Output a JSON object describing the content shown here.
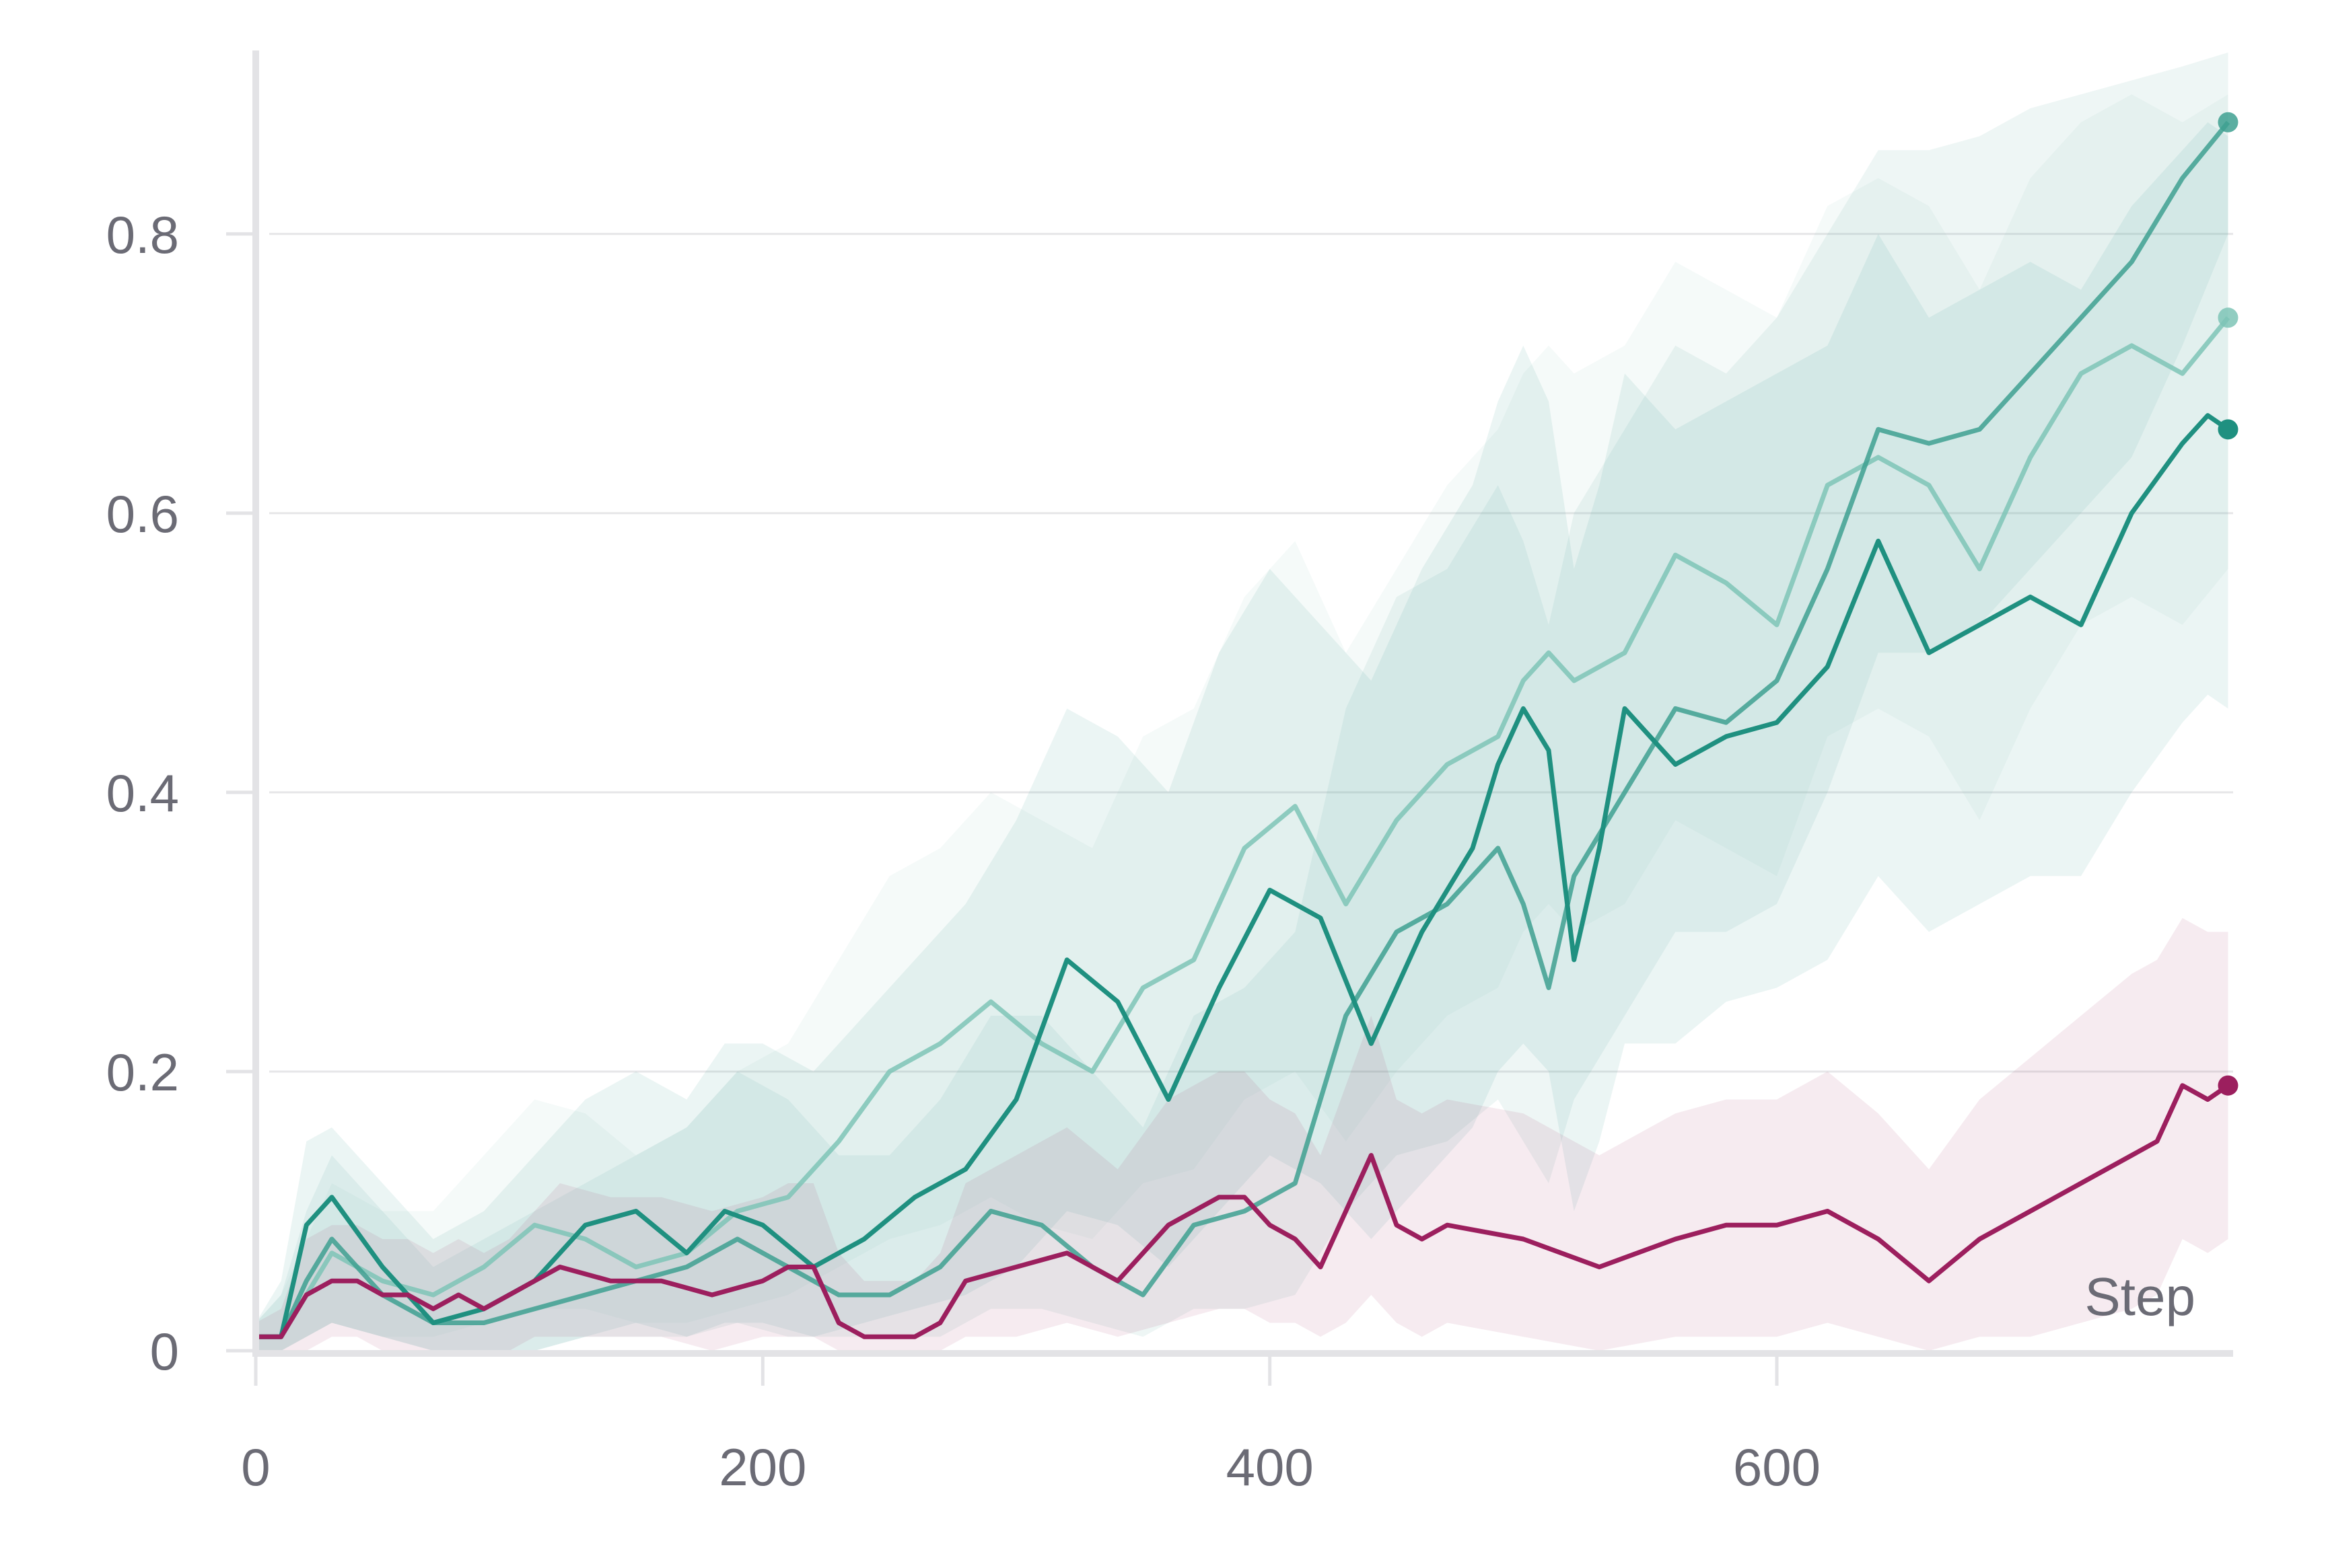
{
  "chart_data": {
    "type": "line",
    "title": "",
    "xlabel": "Step",
    "ylabel": "",
    "xlim": [
      0,
      780
    ],
    "ylim": [
      0,
      0.93
    ],
    "x_ticks": [
      {
        "value": 0,
        "label": "0"
      },
      {
        "value": 200,
        "label": "200"
      },
      {
        "value": 400,
        "label": "400"
      },
      {
        "value": 600,
        "label": "600"
      }
    ],
    "y_ticks": [
      {
        "value": 0,
        "label": "0"
      },
      {
        "value": 0.2,
        "label": "0.2"
      },
      {
        "value": 0.4,
        "label": "0.4"
      },
      {
        "value": 0.6,
        "label": "0.6"
      },
      {
        "value": 0.8,
        "label": "0.8"
      }
    ],
    "grid": "horizontal",
    "legend": "none",
    "colors": {
      "teal_dark": "#1f9080",
      "teal_mid": "#3ea090",
      "teal_light": "#7ec4b6",
      "magenta": "#9c1f5e",
      "grid": "#e6e6e8",
      "axis": "#e3e3e6",
      "text": "#6b6b75"
    },
    "series": [
      {
        "color": "#1f9080",
        "opacity": 1.0,
        "band_opacity": 0.09,
        "x": [
          0,
          10,
          20,
          30,
          50,
          70,
          90,
          110,
          130,
          150,
          170,
          185,
          200,
          220,
          240,
          260,
          280,
          300,
          320,
          340,
          360,
          380,
          400,
          420,
          440,
          460,
          480,
          490,
          500,
          510,
          520,
          530,
          540,
          560,
          580,
          600,
          620,
          640,
          660,
          680,
          700,
          720,
          740,
          760,
          770,
          778
        ],
        "y": [
          0.01,
          0.01,
          0.09,
          0.11,
          0.06,
          0.02,
          0.03,
          0.05,
          0.09,
          0.1,
          0.07,
          0.1,
          0.09,
          0.06,
          0.08,
          0.11,
          0.13,
          0.18,
          0.28,
          0.25,
          0.18,
          0.26,
          0.33,
          0.31,
          0.22,
          0.3,
          0.36,
          0.42,
          0.46,
          0.43,
          0.28,
          0.36,
          0.46,
          0.42,
          0.44,
          0.45,
          0.49,
          0.58,
          0.5,
          0.52,
          0.54,
          0.52,
          0.6,
          0.65,
          0.67,
          0.66
        ],
        "y_low": [
          0.0,
          0.0,
          0.01,
          0.02,
          0.01,
          0.0,
          0.0,
          0.0,
          0.01,
          0.02,
          0.01,
          0.02,
          0.02,
          0.01,
          0.02,
          0.03,
          0.04,
          0.06,
          0.1,
          0.09,
          0.06,
          0.1,
          0.14,
          0.12,
          0.08,
          0.12,
          0.16,
          0.2,
          0.22,
          0.2,
          0.1,
          0.15,
          0.22,
          0.22,
          0.25,
          0.26,
          0.28,
          0.34,
          0.3,
          0.32,
          0.34,
          0.34,
          0.4,
          0.45,
          0.47,
          0.46
        ],
        "y_high": [
          0.02,
          0.05,
          0.15,
          0.16,
          0.12,
          0.08,
          0.1,
          0.14,
          0.18,
          0.2,
          0.18,
          0.22,
          0.22,
          0.2,
          0.24,
          0.28,
          0.32,
          0.38,
          0.46,
          0.44,
          0.4,
          0.5,
          0.56,
          0.52,
          0.48,
          0.56,
          0.62,
          0.68,
          0.72,
          0.68,
          0.56,
          0.62,
          0.7,
          0.66,
          0.68,
          0.7,
          0.72,
          0.8,
          0.74,
          0.76,
          0.78,
          0.76,
          0.82,
          0.86,
          0.88,
          0.87
        ]
      },
      {
        "color": "#3ea090",
        "opacity": 0.85,
        "band_opacity": 0.09,
        "x": [
          0,
          10,
          20,
          30,
          50,
          70,
          90,
          110,
          130,
          150,
          170,
          190,
          210,
          230,
          250,
          270,
          290,
          310,
          330,
          350,
          370,
          390,
          410,
          430,
          450,
          470,
          490,
          500,
          510,
          520,
          540,
          560,
          580,
          600,
          620,
          640,
          660,
          680,
          700,
          720,
          740,
          760,
          778
        ],
        "y": [
          0.01,
          0.01,
          0.05,
          0.08,
          0.04,
          0.02,
          0.02,
          0.03,
          0.04,
          0.05,
          0.06,
          0.08,
          0.06,
          0.04,
          0.04,
          0.06,
          0.1,
          0.09,
          0.06,
          0.04,
          0.09,
          0.1,
          0.12,
          0.24,
          0.3,
          0.32,
          0.36,
          0.32,
          0.26,
          0.34,
          0.4,
          0.46,
          0.45,
          0.48,
          0.56,
          0.66,
          0.65,
          0.66,
          0.7,
          0.74,
          0.78,
          0.84,
          0.88
        ],
        "y_low": [
          0.0,
          0.0,
          0.01,
          0.02,
          0.01,
          0.0,
          0.0,
          0.0,
          0.01,
          0.01,
          0.01,
          0.02,
          0.01,
          0.01,
          0.01,
          0.01,
          0.03,
          0.03,
          0.02,
          0.01,
          0.03,
          0.03,
          0.04,
          0.1,
          0.14,
          0.15,
          0.18,
          0.15,
          0.12,
          0.18,
          0.24,
          0.3,
          0.3,
          0.32,
          0.4,
          0.5,
          0.5,
          0.52,
          0.56,
          0.6,
          0.64,
          0.72,
          0.8
        ],
        "y_high": [
          0.02,
          0.04,
          0.1,
          0.14,
          0.1,
          0.06,
          0.08,
          0.1,
          0.12,
          0.14,
          0.16,
          0.2,
          0.18,
          0.14,
          0.14,
          0.18,
          0.24,
          0.24,
          0.2,
          0.16,
          0.24,
          0.26,
          0.3,
          0.46,
          0.54,
          0.56,
          0.62,
          0.58,
          0.52,
          0.6,
          0.66,
          0.72,
          0.7,
          0.74,
          0.8,
          0.86,
          0.86,
          0.87,
          0.89,
          0.9,
          0.91,
          0.92,
          0.93
        ]
      },
      {
        "color": "#7ec4b6",
        "opacity": 0.85,
        "band_opacity": 0.08,
        "x": [
          0,
          10,
          20,
          30,
          50,
          70,
          90,
          110,
          130,
          150,
          170,
          190,
          210,
          230,
          250,
          270,
          290,
          310,
          330,
          350,
          370,
          390,
          410,
          430,
          450,
          470,
          490,
          500,
          510,
          520,
          540,
          560,
          580,
          600,
          620,
          640,
          660,
          680,
          700,
          720,
          740,
          760,
          778
        ],
        "y": [
          0.01,
          0.01,
          0.04,
          0.07,
          0.05,
          0.04,
          0.06,
          0.09,
          0.08,
          0.06,
          0.07,
          0.1,
          0.11,
          0.15,
          0.2,
          0.22,
          0.25,
          0.22,
          0.2,
          0.26,
          0.28,
          0.36,
          0.39,
          0.32,
          0.38,
          0.42,
          0.44,
          0.48,
          0.5,
          0.48,
          0.5,
          0.57,
          0.55,
          0.52,
          0.62,
          0.64,
          0.62,
          0.56,
          0.64,
          0.7,
          0.72,
          0.7,
          0.74
        ],
        "y_low": [
          0.0,
          0.0,
          0.01,
          0.02,
          0.01,
          0.01,
          0.02,
          0.03,
          0.03,
          0.02,
          0.02,
          0.03,
          0.04,
          0.06,
          0.08,
          0.09,
          0.11,
          0.09,
          0.08,
          0.12,
          0.13,
          0.18,
          0.2,
          0.15,
          0.2,
          0.24,
          0.26,
          0.3,
          0.32,
          0.3,
          0.32,
          0.38,
          0.36,
          0.34,
          0.44,
          0.46,
          0.44,
          0.38,
          0.46,
          0.52,
          0.54,
          0.52,
          0.56
        ],
        "y_high": [
          0.02,
          0.04,
          0.08,
          0.12,
          0.1,
          0.1,
          0.14,
          0.18,
          0.17,
          0.14,
          0.16,
          0.2,
          0.22,
          0.28,
          0.34,
          0.36,
          0.4,
          0.38,
          0.36,
          0.44,
          0.46,
          0.54,
          0.58,
          0.5,
          0.56,
          0.62,
          0.66,
          0.7,
          0.72,
          0.7,
          0.72,
          0.78,
          0.76,
          0.74,
          0.82,
          0.84,
          0.82,
          0.76,
          0.84,
          0.88,
          0.9,
          0.88,
          0.9
        ]
      },
      {
        "color": "#9c1f5e",
        "opacity": 1.0,
        "band_opacity": 0.09,
        "x": [
          0,
          10,
          20,
          30,
          40,
          50,
          60,
          70,
          80,
          90,
          100,
          110,
          120,
          140,
          160,
          180,
          200,
          210,
          220,
          230,
          240,
          250,
          260,
          270,
          280,
          300,
          320,
          340,
          360,
          380,
          390,
          400,
          410,
          420,
          430,
          440,
          450,
          460,
          470,
          500,
          530,
          560,
          580,
          600,
          620,
          640,
          660,
          680,
          700,
          720,
          740,
          750,
          760,
          770,
          778
        ],
        "y": [
          0.01,
          0.01,
          0.04,
          0.05,
          0.05,
          0.04,
          0.04,
          0.03,
          0.04,
          0.03,
          0.04,
          0.05,
          0.06,
          0.05,
          0.05,
          0.04,
          0.05,
          0.06,
          0.06,
          0.02,
          0.01,
          0.01,
          0.01,
          0.02,
          0.05,
          0.06,
          0.07,
          0.05,
          0.09,
          0.11,
          0.11,
          0.09,
          0.08,
          0.06,
          0.1,
          0.14,
          0.09,
          0.08,
          0.09,
          0.08,
          0.06,
          0.08,
          0.09,
          0.09,
          0.1,
          0.08,
          0.05,
          0.08,
          0.1,
          0.12,
          0.14,
          0.15,
          0.19,
          0.18,
          0.19
        ],
        "y_low": [
          0.0,
          0.0,
          0.0,
          0.01,
          0.01,
          0.0,
          0.0,
          0.0,
          0.0,
          0.0,
          0.0,
          0.01,
          0.01,
          0.01,
          0.01,
          0.0,
          0.01,
          0.01,
          0.01,
          0.0,
          0.0,
          0.0,
          0.0,
          0.0,
          0.01,
          0.01,
          0.02,
          0.01,
          0.02,
          0.03,
          0.03,
          0.02,
          0.02,
          0.01,
          0.02,
          0.04,
          0.02,
          0.01,
          0.02,
          0.01,
          0.0,
          0.01,
          0.01,
          0.01,
          0.02,
          0.01,
          0.0,
          0.01,
          0.01,
          0.02,
          0.03,
          0.04,
          0.08,
          0.07,
          0.08
        ],
        "y_high": [
          0.02,
          0.03,
          0.08,
          0.09,
          0.09,
          0.08,
          0.08,
          0.07,
          0.08,
          0.07,
          0.08,
          0.1,
          0.12,
          0.11,
          0.11,
          0.1,
          0.11,
          0.12,
          0.12,
          0.07,
          0.05,
          0.05,
          0.05,
          0.07,
          0.12,
          0.14,
          0.16,
          0.13,
          0.18,
          0.2,
          0.2,
          0.18,
          0.17,
          0.14,
          0.19,
          0.24,
          0.18,
          0.17,
          0.18,
          0.17,
          0.14,
          0.17,
          0.18,
          0.18,
          0.2,
          0.17,
          0.13,
          0.18,
          0.21,
          0.24,
          0.27,
          0.28,
          0.31,
          0.3,
          0.3
        ]
      }
    ]
  }
}
